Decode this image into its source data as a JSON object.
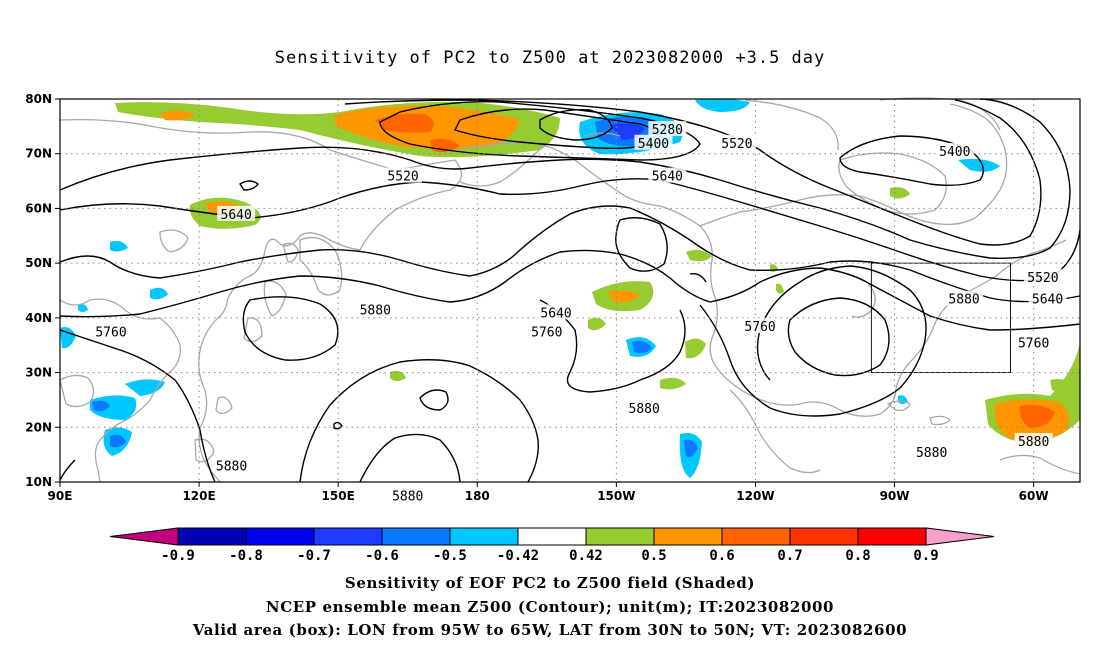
{
  "title": "Sensitivity of PC2 to Z500 at 2023082000 +3.5 day",
  "chart_data": {
    "type": "heatmap",
    "x_ticks": [
      "90E",
      "120E",
      "150E",
      "180",
      "150W",
      "120W",
      "90W",
      "60W"
    ],
    "y_ticks": [
      "10N",
      "20N",
      "30N",
      "40N",
      "50N",
      "60N",
      "70N",
      "80N"
    ],
    "xlim": [
      90,
      310
    ],
    "ylim": [
      10,
      80
    ],
    "colorbar": {
      "ticks": [
        "-0.9",
        "-0.8",
        "-0.7",
        "-0.6",
        "-0.5",
        "-0.42",
        "0.42",
        "0.5",
        "0.6",
        "0.7",
        "0.8",
        "0.9"
      ],
      "colors": [
        "#c3007e",
        "#0000b4",
        "#0000f0",
        "#1e3cff",
        "#0a78ff",
        "#00c8ff",
        "#ffffff",
        "#96cc32",
        "#ff9600",
        "#ff6400",
        "#ff3200",
        "#ff0000",
        "#f5a0c8"
      ]
    },
    "contour_labels": [
      {
        "text": "5280",
        "lon": 221,
        "lat": 74.5
      },
      {
        "text": "5400",
        "lon": 218,
        "lat": 72
      },
      {
        "text": "5520",
        "lon": 236,
        "lat": 72
      },
      {
        "text": "5520",
        "lon": 164,
        "lat": 66
      },
      {
        "text": "5400",
        "lon": 283,
        "lat": 70.5
      },
      {
        "text": "5640",
        "lon": 128,
        "lat": 59
      },
      {
        "text": "5640",
        "lon": 221,
        "lat": 66
      },
      {
        "text": "5640",
        "lon": 197,
        "lat": 41
      },
      {
        "text": "5640",
        "lon": 303,
        "lat": 43.5
      },
      {
        "text": "5520",
        "lon": 302,
        "lat": 47.5
      },
      {
        "text": "5760",
        "lon": 101,
        "lat": 37.5
      },
      {
        "text": "5760",
        "lon": 195,
        "lat": 37.5
      },
      {
        "text": "5760",
        "lon": 241,
        "lat": 38.5
      },
      {
        "text": "5760",
        "lon": 300,
        "lat": 35.5
      },
      {
        "text": "5880",
        "lon": 158,
        "lat": 41.5
      },
      {
        "text": "5880",
        "lon": 285,
        "lat": 43.5
      },
      {
        "text": "5880",
        "lon": 216,
        "lat": 23.5
      },
      {
        "text": "5880",
        "lon": 278,
        "lat": 15.5
      },
      {
        "text": "5880",
        "lon": 300,
        "lat": 17.5
      },
      {
        "text": "5880",
        "lon": 127,
        "lat": 13
      },
      {
        "text": "5880",
        "lon": 165,
        "lat": 7.5
      }
    ],
    "valid_area_box": {
      "lon": [
        265,
        295
      ],
      "lat": [
        30,
        50
      ]
    }
  },
  "footer": {
    "line1": "Sensitivity of EOF PC2 to Z500 field (Shaded)",
    "line2": "NCEP ensemble mean Z500 (Contour); unit(m); IT:2023082000",
    "line3": "Valid area (box): LON from 95W to 65W, LAT from 30N to 50N; VT: 2023082600"
  }
}
